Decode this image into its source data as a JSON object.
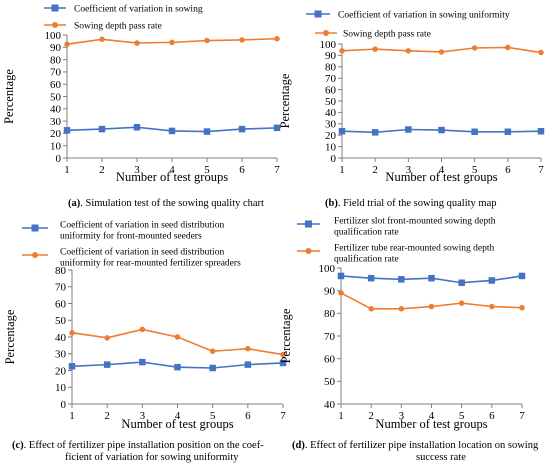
{
  "colors": {
    "blue": "#4472C4",
    "orange": "#ED7D31",
    "axis": "#7f7f7f"
  },
  "chart_data": [
    {
      "type": "line",
      "panel": "a",
      "caption_letter": "(a)",
      "caption": ". Simulation test of the sowing quality chart",
      "xlabel": "Number of test groups",
      "ylabel": "Percentage",
      "x": [
        1,
        2,
        3,
        4,
        5,
        6,
        7
      ],
      "ylim": [
        0,
        100
      ],
      "yticks": [
        0,
        10,
        20,
        30,
        40,
        50,
        60,
        70,
        80,
        90,
        100
      ],
      "legend_position": "top-left",
      "series": [
        {
          "name": "Coefficient of variation in sowing",
          "color": "#4472C4",
          "marker": "square",
          "values": [
            22.5,
            23.5,
            25,
            22,
            21.5,
            23.5,
            24.5
          ]
        },
        {
          "name": "Sowing depth pass rate",
          "color": "#ED7D31",
          "marker": "circle",
          "values": [
            92.5,
            96.5,
            93.5,
            94,
            95.5,
            96,
            97
          ]
        }
      ]
    },
    {
      "type": "line",
      "panel": "b",
      "caption_letter": "(b)",
      "caption": ". Field trial of the sowing quality map",
      "xlabel": "Number of test groups",
      "ylabel": "Percentage",
      "x": [
        1,
        2,
        3,
        4,
        5,
        6,
        7
      ],
      "ylim": [
        0,
        100
      ],
      "yticks": [
        0,
        10,
        20,
        30,
        40,
        50,
        60,
        70,
        80,
        90,
        100
      ],
      "legend_position": "top",
      "series": [
        {
          "name": "Coefficient of variation in sowing uniformity",
          "color": "#4472C4",
          "marker": "square",
          "values": [
            23.5,
            22.5,
            25,
            24.5,
            23,
            23,
            23.5
          ]
        },
        {
          "name": "Sowing depth pass rate",
          "color": "#ED7D31",
          "marker": "circle",
          "values": [
            94,
            95.5,
            94,
            93,
            96.5,
            97,
            92.5
          ]
        }
      ]
    },
    {
      "type": "line",
      "panel": "c",
      "caption_letter": "(c)",
      "caption": ". Effect of fertilizer pipe installation position on the coef-",
      "caption2": "ficient of variation for sowing uniformity",
      "xlabel": "Number of test groups",
      "ylabel": "Percentage",
      "x": [
        1,
        2,
        3,
        4,
        5,
        6,
        7
      ],
      "ylim": [
        0,
        80
      ],
      "yticks": [
        0,
        10,
        20,
        30,
        40,
        50,
        60,
        70,
        80
      ],
      "legend_position": "top",
      "series": [
        {
          "name": "Coefficient of variation in seed distribution uniformity for front-mounted seeders",
          "name_lines": [
            "Coefficient of variation in seed distribution",
            "uniformity for front-mounted seeders"
          ],
          "color": "#4472C4",
          "marker": "square",
          "values": [
            22.5,
            23.5,
            25,
            22,
            21.5,
            23.5,
            24.5
          ]
        },
        {
          "name": "Coefficient of variation in seed distribution uniformity for rear-mounted fertilizer spreaders",
          "name_lines": [
            "Coefficient of variation in seed distribution",
            "uniformity for rear-mounted fertilizer spreaders"
          ],
          "color": "#ED7D31",
          "marker": "circle",
          "values": [
            42.5,
            39.5,
            44.5,
            40,
            31.5,
            33,
            29.5
          ]
        }
      ]
    },
    {
      "type": "line",
      "panel": "d",
      "caption_letter": "(d)",
      "caption": ". Effect of fertilizer pipe installation location on sowing",
      "caption2": "success rate",
      "xlabel": "Number of test groups",
      "ylabel": "Percentage",
      "x": [
        1,
        2,
        3,
        4,
        5,
        6,
        7
      ],
      "ylim": [
        40,
        100
      ],
      "yticks": [
        40,
        50,
        60,
        70,
        80,
        90,
        100
      ],
      "legend_position": "top",
      "series": [
        {
          "name": "Fertilizer slot front-mounted sowing depth qualification rate",
          "name_lines": [
            "Fertilizer slot front-mounted sowing depth",
            "qualification rate"
          ],
          "color": "#4472C4",
          "marker": "square",
          "values": [
            96.5,
            95.5,
            95,
            95.5,
            93.5,
            94.5,
            96.5
          ]
        },
        {
          "name": "Fertilizer tube rear-mounted sowing depth qualification rate",
          "name_lines": [
            "Fertilizer tube rear-mounted sowing depth",
            "qualification rate"
          ],
          "color": "#ED7D31",
          "marker": "circle",
          "values": [
            89,
            82,
            82,
            83,
            84.5,
            83,
            82.5
          ]
        }
      ]
    }
  ]
}
